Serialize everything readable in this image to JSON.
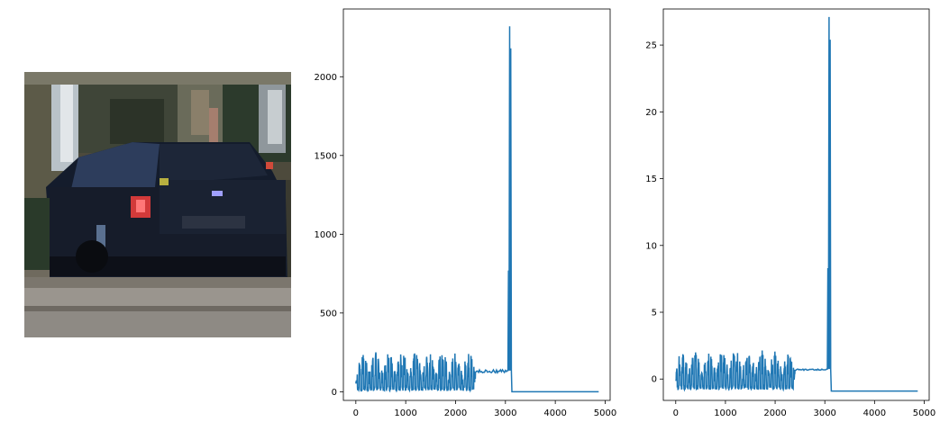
{
  "image_panel": {
    "description_icon": "car-photo"
  },
  "chart_data": [
    {
      "type": "line",
      "title": "",
      "xlabel": "",
      "ylabel": "",
      "xlim": [
        -250,
        5100
      ],
      "ylim": [
        -55,
        2430
      ],
      "xticks": [
        0,
        1000,
        2000,
        3000,
        4000,
        5000
      ],
      "yticks": [
        0,
        500,
        1000,
        1500,
        2000
      ],
      "xtick_labels": [
        "0",
        "1000",
        "2000",
        "3000",
        "4000",
        "5000"
      ],
      "ytick_labels": [
        "0",
        "500",
        "1000",
        "1500",
        "2000"
      ],
      "grid": false,
      "series": [
        {
          "color": "#1f77b4",
          "length": 4884,
          "segments": [
            {
              "x_start": 0,
              "x_end": 2400,
              "kind": "noisy_band",
              "low": 5,
              "high": 250
            },
            {
              "x_start": 2400,
              "x_end": 3050,
              "kind": "flat",
              "value": 130
            },
            {
              "x_start": 3050,
              "x_end": 3130,
              "kind": "spikes",
              "peaks": [
                770,
                2320,
                2180
              ]
            },
            {
              "x_start": 3130,
              "x_end": 4884,
              "kind": "flat",
              "value": 0
            }
          ]
        }
      ]
    },
    {
      "type": "line",
      "title": "",
      "xlabel": "",
      "ylabel": "",
      "xlim": [
        -250,
        5100
      ],
      "ylim": [
        -1.6,
        27.7
      ],
      "xticks": [
        0,
        1000,
        2000,
        3000,
        4000,
        5000
      ],
      "yticks": [
        0,
        5,
        10,
        15,
        20,
        25
      ],
      "xtick_labels": [
        "0",
        "1000",
        "2000",
        "3000",
        "4000",
        "5000"
      ],
      "ytick_labels": [
        "0",
        "5",
        "10",
        "15",
        "20",
        "25"
      ],
      "grid": false,
      "series": [
        {
          "color": "#1f77b4",
          "length": 4884,
          "segments": [
            {
              "x_start": 0,
              "x_end": 2400,
              "kind": "noisy_band",
              "low": -0.8,
              "high": 2.2
            },
            {
              "x_start": 2400,
              "x_end": 3050,
              "kind": "flat",
              "value": 0.7
            },
            {
              "x_start": 3050,
              "x_end": 3130,
              "kind": "spikes",
              "peaks": [
                8.3,
                27.1,
                25.4
              ]
            },
            {
              "x_start": 3130,
              "x_end": 4884,
              "kind": "flat",
              "value": -0.9
            }
          ]
        }
      ]
    }
  ]
}
